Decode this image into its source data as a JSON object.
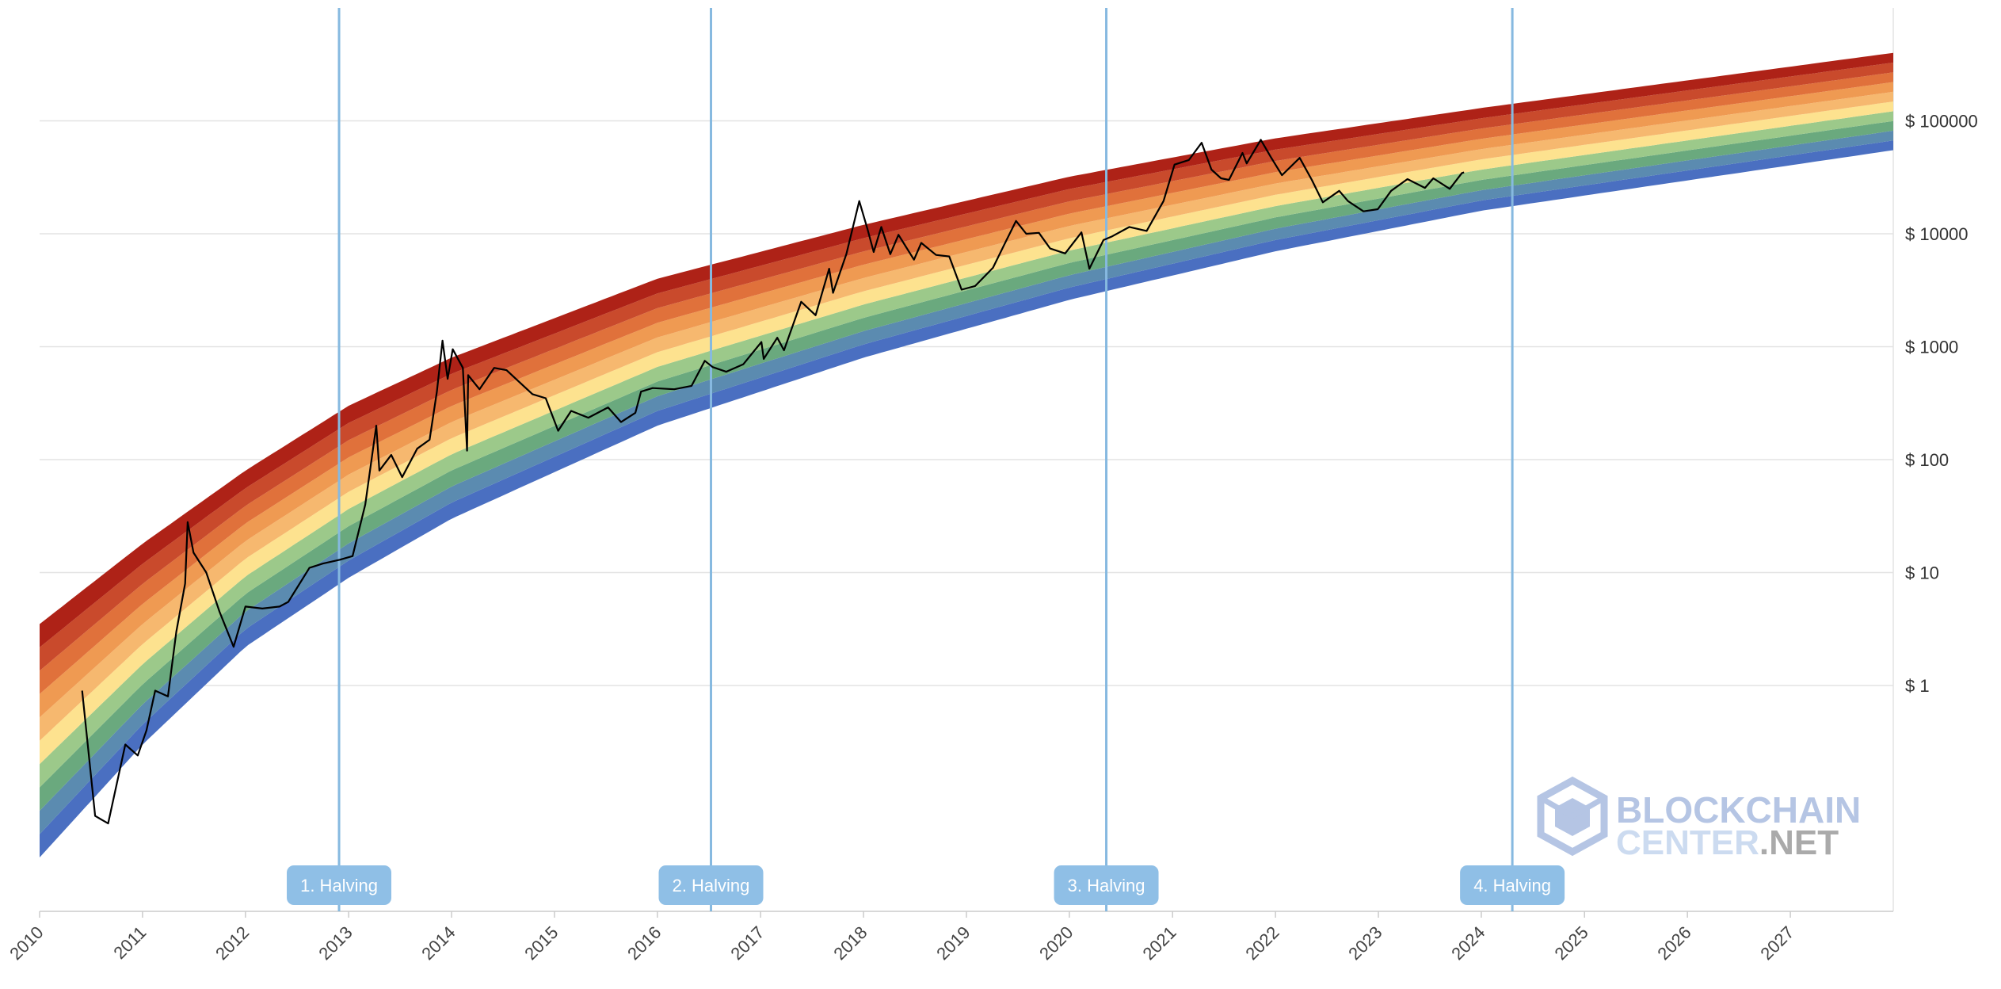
{
  "chart_data": {
    "type": "area",
    "title": "",
    "xlabel": "",
    "ylabel": "",
    "y_scale": "log",
    "ylim": [
      0.01,
      1000000
    ],
    "xlim": [
      "2010-01-01",
      "2028-01-01"
    ],
    "grid": "horizontal",
    "y_ticks": [
      {
        "value": 1,
        "label": "$ 1"
      },
      {
        "value": 10,
        "label": "$ 10"
      },
      {
        "value": 100,
        "label": "$ 100"
      },
      {
        "value": 1000,
        "label": "$ 1000"
      },
      {
        "value": 10000,
        "label": "$ 10000"
      },
      {
        "value": 100000,
        "label": "$ 100000"
      }
    ],
    "x_ticks": [
      "2010",
      "2011",
      "2012",
      "2013",
      "2014",
      "2015",
      "2016",
      "2017",
      "2018",
      "2019",
      "2020",
      "2021",
      "2022",
      "2023",
      "2024",
      "2025",
      "2026",
      "2027"
    ],
    "halvings": [
      {
        "label": "1. Halving",
        "date": "2012-11-28"
      },
      {
        "label": "2. Halving",
        "date": "2016-07-09"
      },
      {
        "label": "3. Halving",
        "date": "2020-05-11"
      },
      {
        "label": "4. Halving",
        "date": "2024-04-20"
      }
    ],
    "bands": [
      {
        "color": "#4a6fc1"
      },
      {
        "color": "#5b8bb0"
      },
      {
        "color": "#6aa97e"
      },
      {
        "color": "#9cc98a"
      },
      {
        "color": "#fde28f"
      },
      {
        "color": "#f6b86f"
      },
      {
        "color": "#ef9a52"
      },
      {
        "color": "#e0713b"
      },
      {
        "color": "#c94a2c"
      },
      {
        "color": "#ae2217"
      }
    ],
    "band_edges_at_dates": {
      "dates": [
        "2010-01-01",
        "2011-01-01",
        "2012-01-01",
        "2013-01-01",
        "2014-01-01",
        "2016-01-01",
        "2018-01-01",
        "2020-01-01",
        "2022-01-01",
        "2024-01-01",
        "2028-01-01"
      ],
      "lower": [
        0.03,
        0.3,
        2.2,
        9,
        30,
        200,
        800,
        2600,
        7000,
        16000,
        55000
      ],
      "upper": [
        3.5,
        18,
        80,
        300,
        800,
        4000,
        12000,
        32000,
        70000,
        130000,
        400000
      ]
    },
    "series": [
      {
        "color": "#000000",
        "points": [
          [
            "2010-06-01",
            0.9
          ],
          [
            "2010-07-17",
            0.07
          ],
          [
            "2010-09-01",
            0.06
          ],
          [
            "2010-11-01",
            0.3
          ],
          [
            "2010-12-15",
            0.24
          ],
          [
            "2011-01-15",
            0.4
          ],
          [
            "2011-02-15",
            0.9
          ],
          [
            "2011-04-01",
            0.8
          ],
          [
            "2011-05-01",
            3
          ],
          [
            "2011-06-01",
            8
          ],
          [
            "2011-06-10",
            28
          ],
          [
            "2011-07-01",
            15
          ],
          [
            "2011-08-15",
            10
          ],
          [
            "2011-10-01",
            4.5
          ],
          [
            "2011-11-20",
            2.2
          ],
          [
            "2012-01-01",
            5
          ],
          [
            "2012-03-01",
            4.8
          ],
          [
            "2012-05-01",
            5
          ],
          [
            "2012-06-01",
            5.5
          ],
          [
            "2012-08-15",
            11
          ],
          [
            "2012-10-01",
            12
          ],
          [
            "2012-12-01",
            13
          ],
          [
            "2013-01-15",
            14
          ],
          [
            "2013-03-01",
            40
          ],
          [
            "2013-04-09",
            200
          ],
          [
            "2013-04-20",
            80
          ],
          [
            "2013-06-01",
            110
          ],
          [
            "2013-07-10",
            70
          ],
          [
            "2013-09-01",
            125
          ],
          [
            "2013-10-15",
            150
          ],
          [
            "2013-11-10",
            400
          ],
          [
            "2013-11-30",
            1130
          ],
          [
            "2013-12-18",
            520
          ],
          [
            "2014-01-05",
            950
          ],
          [
            "2014-02-10",
            650
          ],
          [
            "2014-02-25",
            120
          ],
          [
            "2014-03-01",
            560
          ],
          [
            "2014-04-10",
            420
          ],
          [
            "2014-06-01",
            650
          ],
          [
            "2014-07-15",
            620
          ],
          [
            "2014-09-01",
            480
          ],
          [
            "2014-10-15",
            380
          ],
          [
            "2014-12-01",
            350
          ],
          [
            "2015-01-14",
            180
          ],
          [
            "2015-03-01",
            270
          ],
          [
            "2015-05-01",
            235
          ],
          [
            "2015-07-10",
            290
          ],
          [
            "2015-08-25",
            215
          ],
          [
            "2015-10-15",
            260
          ],
          [
            "2015-11-04",
            400
          ],
          [
            "2015-12-15",
            430
          ],
          [
            "2016-03-01",
            420
          ],
          [
            "2016-05-01",
            450
          ],
          [
            "2016-06-17",
            750
          ],
          [
            "2016-07-15",
            660
          ],
          [
            "2016-09-01",
            600
          ],
          [
            "2016-11-01",
            700
          ],
          [
            "2017-01-04",
            1100
          ],
          [
            "2017-01-12",
            780
          ],
          [
            "2017-03-01",
            1200
          ],
          [
            "2017-03-25",
            930
          ],
          [
            "2017-05-25",
            2500
          ],
          [
            "2017-07-15",
            1900
          ],
          [
            "2017-09-01",
            4900
          ],
          [
            "2017-09-15",
            3000
          ],
          [
            "2017-11-01",
            6600
          ],
          [
            "2017-12-17",
            19500
          ],
          [
            "2018-01-15",
            11000
          ],
          [
            "2018-02-06",
            6900
          ],
          [
            "2018-03-05",
            11500
          ],
          [
            "2018-04-06",
            6600
          ],
          [
            "2018-05-05",
            9800
          ],
          [
            "2018-06-29",
            5900
          ],
          [
            "2018-07-25",
            8300
          ],
          [
            "2018-09-15",
            6500
          ],
          [
            "2018-11-01",
            6300
          ],
          [
            "2018-12-15",
            3200
          ],
          [
            "2019-02-01",
            3450
          ],
          [
            "2019-04-05",
            5000
          ],
          [
            "2019-05-15",
            8000
          ],
          [
            "2019-06-26",
            13000
          ],
          [
            "2019-08-01",
            10000
          ],
          [
            "2019-09-15",
            10200
          ],
          [
            "2019-10-25",
            7400
          ],
          [
            "2019-12-17",
            6700
          ],
          [
            "2020-02-13",
            10300
          ],
          [
            "2020-03-12",
            4900
          ],
          [
            "2020-05-01",
            8800
          ],
          [
            "2020-06-01",
            9500
          ],
          [
            "2020-08-01",
            11500
          ],
          [
            "2020-10-01",
            10600
          ],
          [
            "2020-11-30",
            19500
          ],
          [
            "2021-01-08",
            41000
          ],
          [
            "2021-02-28",
            45000
          ],
          [
            "2021-04-14",
            64000
          ],
          [
            "2021-05-19",
            37000
          ],
          [
            "2021-06-22",
            31000
          ],
          [
            "2021-07-20",
            30000
          ],
          [
            "2021-09-06",
            52000
          ],
          [
            "2021-09-21",
            42000
          ],
          [
            "2021-11-10",
            68000
          ],
          [
            "2021-12-15",
            48000
          ],
          [
            "2022-01-24",
            33000
          ],
          [
            "2022-03-28",
            47000
          ],
          [
            "2022-05-10",
            30000
          ],
          [
            "2022-06-18",
            19000
          ],
          [
            "2022-08-15",
            24000
          ],
          [
            "2022-09-15",
            19500
          ],
          [
            "2022-11-09",
            15800
          ],
          [
            "2022-12-30",
            16500
          ],
          [
            "2023-02-15",
            24000
          ],
          [
            "2023-04-14",
            30500
          ],
          [
            "2023-06-15",
            25500
          ],
          [
            "2023-07-15",
            31000
          ],
          [
            "2023-09-11",
            25000
          ],
          [
            "2023-10-24",
            34500
          ],
          [
            "2023-11-01",
            35000
          ]
        ]
      }
    ]
  },
  "watermark": {
    "line1": "BLOCKCHAIN",
    "line2a": "CENTER",
    "line2b": ".NET",
    "icon": "blockchain-cube-icon"
  }
}
